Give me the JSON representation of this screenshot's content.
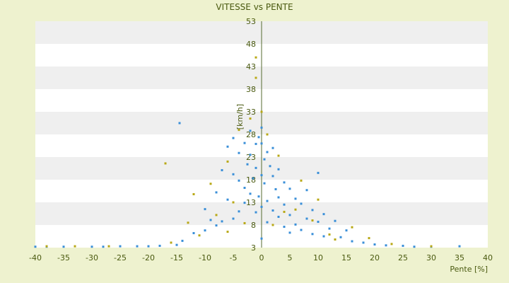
{
  "chart_data": {
    "type": "scatter",
    "title": "VITESSE vs PENTE",
    "xlabel": "Pente [%]",
    "ylabel": "[km/h]",
    "xlim": [
      -40,
      40
    ],
    "ylim": [
      3,
      53
    ],
    "x_ticks": [
      "-40",
      "-35",
      "-30",
      "-25",
      "-20",
      "-15",
      "-10",
      "-5",
      "0",
      "5",
      "10",
      "15",
      "20",
      "25",
      "30",
      "35",
      "40"
    ],
    "y_ticks": [
      "3",
      "8",
      "13",
      "18",
      "23",
      "28",
      "33",
      "38",
      "43",
      "48",
      "53"
    ],
    "grid": "horizontal bands",
    "legend": "none",
    "colors": {
      "series_a": "#3a8fd8",
      "series_b": "#b8a816",
      "band": "#efefef",
      "plot_bg": "#ffffff",
      "axis": "#556b2f"
    },
    "series": [
      {
        "color": "#3a8fd8",
        "points": [
          [
            -40,
            3.2
          ],
          [
            -38,
            3.2
          ],
          [
            -35,
            3.2
          ],
          [
            -30,
            3.2
          ],
          [
            -28,
            3.2
          ],
          [
            -25,
            3.3
          ],
          [
            -22,
            3.3
          ],
          [
            -20,
            3.3
          ],
          [
            -18,
            3.4
          ],
          [
            -15,
            3.6
          ],
          [
            -14.5,
            30.5
          ],
          [
            -14,
            4.5
          ],
          [
            -12,
            6.2
          ],
          [
            -10,
            6.8
          ],
          [
            -10,
            11.5
          ],
          [
            -9,
            9.1
          ],
          [
            -8,
            7.9
          ],
          [
            -8,
            15.2
          ],
          [
            -7,
            8.8
          ],
          [
            -7,
            20.1
          ],
          [
            -6,
            13.6
          ],
          [
            -6,
            25.3
          ],
          [
            -5,
            9.4
          ],
          [
            -5,
            19.2
          ],
          [
            -5,
            27.2
          ],
          [
            -4,
            11.0
          ],
          [
            -4,
            17.8
          ],
          [
            -4,
            23.9
          ],
          [
            -3,
            12.9
          ],
          [
            -3,
            16.2
          ],
          [
            -3,
            26.1
          ],
          [
            -2.5,
            21.4
          ],
          [
            -2,
            14.9
          ],
          [
            -2,
            23.5
          ],
          [
            -2,
            28.8
          ],
          [
            -1.5,
            18.3
          ],
          [
            -1,
            10.8
          ],
          [
            -1,
            20.6
          ],
          [
            -1,
            25.9
          ],
          [
            -0.5,
            14.3
          ],
          [
            -0.5,
            27.4
          ],
          [
            0,
            5.0
          ],
          [
            0,
            12.0
          ],
          [
            0,
            19.0
          ],
          [
            0,
            26.0
          ],
          [
            0,
            29.5
          ],
          [
            0.5,
            22.5
          ],
          [
            0.5,
            17.2
          ],
          [
            1,
            24.1
          ],
          [
            1,
            13.3
          ],
          [
            1,
            8.6
          ],
          [
            1.5,
            21.0
          ],
          [
            2,
            18.8
          ],
          [
            2,
            11.2
          ],
          [
            2,
            25.0
          ],
          [
            2.5,
            15.9
          ],
          [
            3,
            20.3
          ],
          [
            3,
            9.8
          ],
          [
            3,
            14.1
          ],
          [
            4,
            17.4
          ],
          [
            4,
            7.6
          ],
          [
            4,
            12.5
          ],
          [
            5,
            16.0
          ],
          [
            5,
            10.2
          ],
          [
            5,
            6.3
          ],
          [
            6,
            13.8
          ],
          [
            6,
            8.1
          ],
          [
            7,
            12.7
          ],
          [
            7,
            6.9
          ],
          [
            8,
            15.7
          ],
          [
            8,
            9.4
          ],
          [
            9,
            11.3
          ],
          [
            9,
            6.0
          ],
          [
            10,
            19.5
          ],
          [
            10,
            8.7
          ],
          [
            11,
            10.4
          ],
          [
            11,
            5.5
          ],
          [
            12,
            7.2
          ],
          [
            13,
            8.9
          ],
          [
            14,
            5.3
          ],
          [
            15,
            6.8
          ],
          [
            16,
            4.4
          ],
          [
            18,
            4.1
          ],
          [
            20,
            3.7
          ],
          [
            22,
            3.5
          ],
          [
            25,
            3.4
          ],
          [
            27,
            3.2
          ],
          [
            30,
            3.2
          ],
          [
            35,
            3.3
          ]
        ]
      },
      {
        "color": "#b8a816",
        "points": [
          [
            -38,
            3.3
          ],
          [
            -33,
            3.3
          ],
          [
            -27,
            3.3
          ],
          [
            -17,
            21.6
          ],
          [
            -16,
            4.1
          ],
          [
            -13,
            8.5
          ],
          [
            -12,
            14.8
          ],
          [
            -11,
            5.7
          ],
          [
            -9,
            17.1
          ],
          [
            -8,
            10.2
          ],
          [
            -6,
            22.0
          ],
          [
            -6,
            6.5
          ],
          [
            -5,
            13.0
          ],
          [
            -4,
            29.0
          ],
          [
            -3,
            8.4
          ],
          [
            -2,
            31.5
          ],
          [
            -1,
            40.5
          ],
          [
            -1,
            45.0
          ],
          [
            0,
            33.0
          ],
          [
            1,
            28.0
          ],
          [
            2,
            8.0
          ],
          [
            3,
            23.3
          ],
          [
            4,
            10.9
          ],
          [
            6,
            11.4
          ],
          [
            7,
            17.8
          ],
          [
            9,
            9.0
          ],
          [
            10,
            13.6
          ],
          [
            12,
            5.9
          ],
          [
            13,
            4.8
          ],
          [
            16,
            7.5
          ],
          [
            19,
            5.1
          ],
          [
            23,
            3.8
          ],
          [
            30,
            3.3
          ]
        ]
      }
    ]
  }
}
